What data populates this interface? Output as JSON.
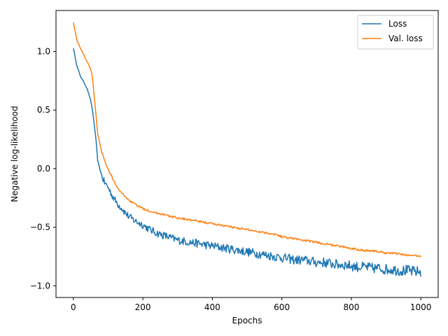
{
  "chart_data": {
    "type": "line",
    "title": "",
    "xlabel": "Epochs",
    "ylabel": "Negative log-likelihood",
    "xlim": [
      -50,
      1050
    ],
    "ylim": [
      -1.1,
      1.35
    ],
    "xticks": [
      0,
      200,
      400,
      600,
      800,
      1000
    ],
    "xtick_labels": [
      "0",
      "200",
      "400",
      "600",
      "800",
      "1000"
    ],
    "yticks": [
      -1.0,
      -0.5,
      0.0,
      0.5,
      1.0
    ],
    "ytick_labels": [
      "−1.0",
      "−0.5",
      "0.0",
      "0.5",
      "1.0"
    ],
    "grid": false,
    "legend_position": "top-right",
    "series": [
      {
        "name": "Loss",
        "color": "#1f77b4",
        "x": [
          0,
          10,
          20,
          30,
          40,
          50,
          55,
          60,
          65,
          70,
          80,
          90,
          100,
          110,
          120,
          130,
          140,
          150,
          160,
          170,
          180,
          200,
          220,
          240,
          260,
          280,
          300,
          320,
          340,
          360,
          380,
          400,
          420,
          440,
          460,
          480,
          500,
          520,
          540,
          560,
          580,
          600,
          620,
          640,
          660,
          680,
          700,
          720,
          740,
          760,
          780,
          800,
          820,
          840,
          860,
          880,
          900,
          920,
          940,
          960,
          980,
          1000
        ],
        "y": [
          1.03,
          0.88,
          0.79,
          0.74,
          0.68,
          0.58,
          0.5,
          0.38,
          0.25,
          0.07,
          -0.05,
          -0.12,
          -0.16,
          -0.22,
          -0.27,
          -0.31,
          -0.34,
          -0.38,
          -0.41,
          -0.43,
          -0.45,
          -0.48,
          -0.52,
          -0.55,
          -0.57,
          -0.59,
          -0.61,
          -0.62,
          -0.63,
          -0.64,
          -0.65,
          -0.66,
          -0.67,
          -0.68,
          -0.69,
          -0.7,
          -0.71,
          -0.72,
          -0.73,
          -0.74,
          -0.75,
          -0.76,
          -0.77,
          -0.78,
          -0.78,
          -0.79,
          -0.8,
          -0.8,
          -0.81,
          -0.82,
          -0.82,
          -0.83,
          -0.84,
          -0.84,
          -0.85,
          -0.85,
          -0.86,
          -0.86,
          -0.87,
          -0.87,
          -0.88,
          -0.88
        ]
      },
      {
        "name": "Val. loss",
        "color": "#ff7f0e",
        "x": [
          0,
          10,
          20,
          30,
          40,
          50,
          55,
          60,
          65,
          70,
          80,
          90,
          100,
          110,
          120,
          130,
          140,
          150,
          160,
          170,
          180,
          200,
          220,
          240,
          260,
          280,
          300,
          320,
          340,
          360,
          380,
          400,
          420,
          440,
          460,
          480,
          500,
          520,
          540,
          560,
          580,
          600,
          620,
          640,
          660,
          680,
          700,
          720,
          740,
          760,
          780,
          800,
          820,
          840,
          860,
          880,
          900,
          920,
          940,
          960,
          980,
          1000
        ],
        "y": [
          1.25,
          1.1,
          1.03,
          0.97,
          0.91,
          0.85,
          0.78,
          0.62,
          0.46,
          0.3,
          0.16,
          0.07,
          -0.01,
          -0.06,
          -0.13,
          -0.18,
          -0.21,
          -0.24,
          -0.27,
          -0.29,
          -0.31,
          -0.34,
          -0.36,
          -0.38,
          -0.39,
          -0.41,
          -0.42,
          -0.43,
          -0.44,
          -0.45,
          -0.46,
          -0.47,
          -0.48,
          -0.49,
          -0.5,
          -0.51,
          -0.52,
          -0.53,
          -0.54,
          -0.55,
          -0.56,
          -0.58,
          -0.59,
          -0.6,
          -0.61,
          -0.62,
          -0.63,
          -0.64,
          -0.65,
          -0.66,
          -0.67,
          -0.68,
          -0.69,
          -0.7,
          -0.7,
          -0.71,
          -0.72,
          -0.72,
          -0.73,
          -0.74,
          -0.74,
          -0.75
        ]
      }
    ]
  }
}
